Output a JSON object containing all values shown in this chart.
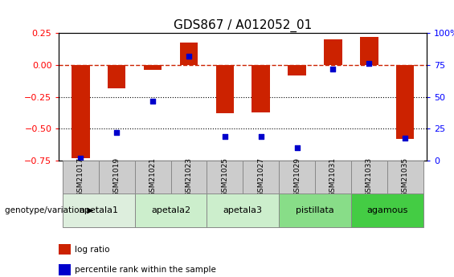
{
  "title": "GDS867 / A012052_01",
  "samples": [
    "GSM21017",
    "GSM21019",
    "GSM21021",
    "GSM21023",
    "GSM21025",
    "GSM21027",
    "GSM21029",
    "GSM21031",
    "GSM21033",
    "GSM21035"
  ],
  "log_ratio": [
    -0.73,
    -0.18,
    -0.04,
    0.18,
    -0.38,
    -0.37,
    -0.08,
    0.2,
    0.22,
    -0.58
  ],
  "percentile_rank": [
    2,
    22,
    47,
    82,
    19,
    19,
    10,
    72,
    76,
    18
  ],
  "groups": [
    {
      "label": "apetala1",
      "indices": [
        0,
        1
      ],
      "color": "#ddeedd"
    },
    {
      "label": "apetala2",
      "indices": [
        2,
        3
      ],
      "color": "#cceecc"
    },
    {
      "label": "apetala3",
      "indices": [
        4,
        5
      ],
      "color": "#cceecc"
    },
    {
      "label": "pistillata",
      "indices": [
        6,
        7
      ],
      "color": "#88dd88"
    },
    {
      "label": "agamous",
      "indices": [
        8,
        9
      ],
      "color": "#44cc44"
    }
  ],
  "ylim_left": [
    -0.75,
    0.25
  ],
  "ylim_right": [
    0,
    100
  ],
  "yticks_left": [
    -0.75,
    -0.5,
    -0.25,
    0,
    0.25
  ],
  "yticks_right": [
    0,
    25,
    50,
    75,
    100
  ],
  "bar_color": "#cc2200",
  "dot_color": "#0000cc",
  "hline_color": "#cc2200",
  "dotted_lines": [
    -0.25,
    -0.5
  ],
  "bar_width": 0.5,
  "legend_items": [
    {
      "label": "log ratio",
      "color": "#cc2200"
    },
    {
      "label": "percentile rank within the sample",
      "color": "#0000cc"
    }
  ],
  "sample_box_color": "#cccccc",
  "sample_box_edge": "#888888"
}
